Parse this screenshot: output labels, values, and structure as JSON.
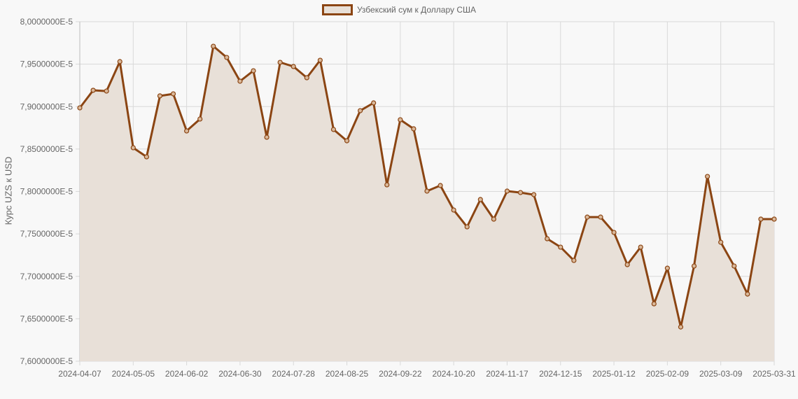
{
  "legend": {
    "label": "Узбекский сум к Доллару США"
  },
  "colors": {
    "line": "#8b4513",
    "fill": "#e8e0d8",
    "grid": "#d9d9d9",
    "background": "#f8f8f8",
    "text": "#666666"
  },
  "chart_data": {
    "type": "area",
    "title": "",
    "xlabel": "",
    "ylabel": "Курс UZS к USD",
    "legend": [
      "Узбекский сум к Доллару США"
    ],
    "legend_position": "top",
    "grid": true,
    "ylim": [
      7.6e-05,
      8e-05
    ],
    "y_tick_labels": [
      "8,0000000E-5",
      "7,9500000E-5",
      "7,9000000E-5",
      "7,8500000E-5",
      "7,8000000E-5",
      "7,7500000E-5",
      "7,7000000E-5",
      "7,6500000E-5",
      "7,6000000E-5"
    ],
    "y_ticks": [
      8e-05,
      7.95e-05,
      7.9e-05,
      7.85e-05,
      7.8e-05,
      7.75e-05,
      7.7e-05,
      7.65e-05,
      7.6e-05
    ],
    "x_tick_labels": [
      "2024-04-07",
      "2024-05-05",
      "2024-06-02",
      "2024-06-30",
      "2024-07-28",
      "2024-08-25",
      "2024-09-22",
      "2024-10-20",
      "2024-11-17",
      "2024-12-15",
      "2025-01-12",
      "2025-02-09",
      "2025-03-09",
      "2025-03-31"
    ],
    "x_tick_indices": [
      0,
      4,
      8,
      12,
      16,
      20,
      24,
      28,
      32,
      36,
      40,
      44,
      48,
      52
    ],
    "series": [
      {
        "name": "Узбекский сум к Доллару США",
        "values_e5": [
          7.8985,
          7.9192,
          7.9183,
          7.953,
          7.8515,
          7.8408,
          7.9126,
          7.915,
          7.8713,
          7.8853,
          7.9711,
          7.9579,
          7.9299,
          7.9422,
          7.8639,
          7.9521,
          7.9472,
          7.934,
          7.9546,
          7.873,
          7.8597,
          7.8952,
          7.9043,
          7.8078,
          7.8845,
          7.8738,
          7.8004,
          7.807,
          7.7781,
          7.7583,
          7.7905,
          7.7674,
          7.8004,
          7.7987,
          7.7962,
          7.7443,
          7.7344,
          7.7187,
          7.7698,
          7.7698,
          7.7517,
          7.7138,
          7.7344,
          7.6676,
          7.7096,
          7.6403,
          7.7121,
          7.8177,
          7.7401,
          7.7121,
          7.6791,
          7.7674,
          7.7674
        ]
      }
    ]
  }
}
